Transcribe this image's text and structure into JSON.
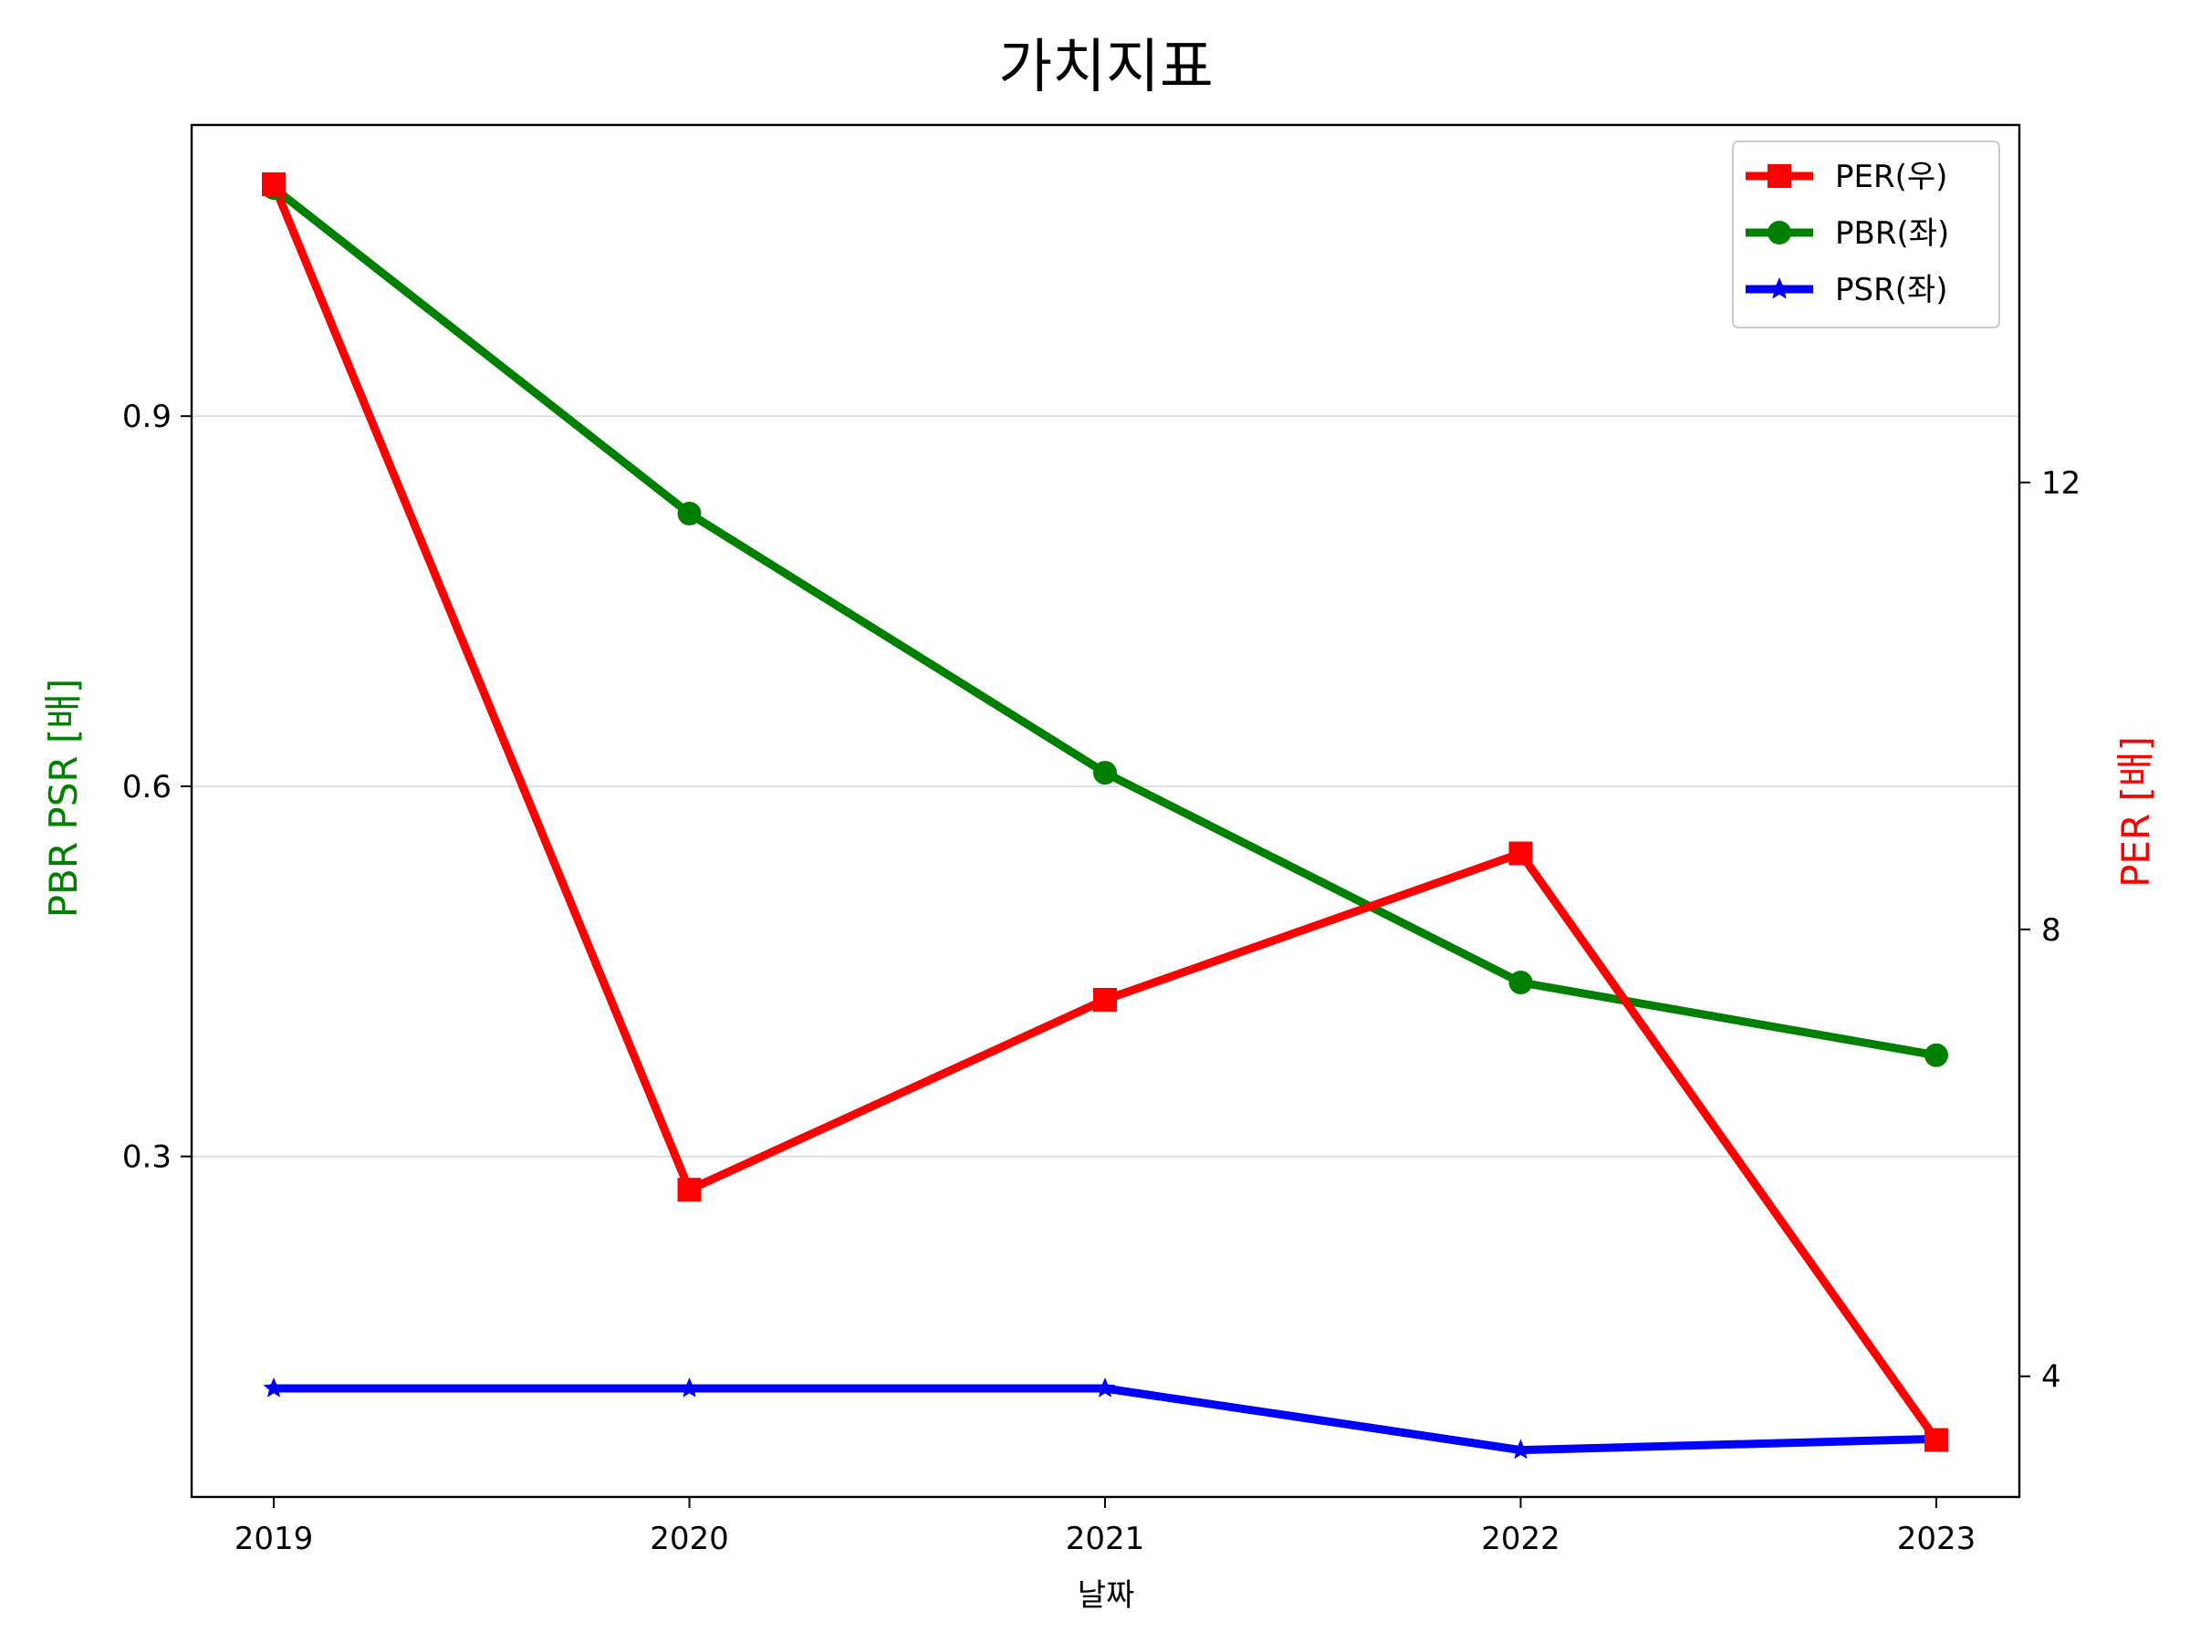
{
  "chart_data": {
    "type": "line",
    "title": "가치지표",
    "xlabel": "날짜",
    "ylabel_left": "PBR PSR [배]",
    "ylabel_right": "PER [배]",
    "categories": [
      "2019",
      "2020",
      "2021",
      "2022",
      "2023"
    ],
    "y_left": {
      "ticks": [
        0.3,
        0.6,
        0.9
      ],
      "tick_labels": [
        "0.3",
        "0.6",
        "0.9"
      ],
      "range": [
        0.024,
        1.136
      ],
      "grid": true
    },
    "y_right": {
      "ticks": [
        4,
        8,
        12
      ],
      "tick_labels": [
        "4",
        "8",
        "12"
      ],
      "range": [
        2.92,
        15.2
      ]
    },
    "series": [
      {
        "name": "PER(우)",
        "axis": "right",
        "color": "#ff0000",
        "marker": "square",
        "values": [
          14.67,
          5.67,
          7.37,
          8.68,
          3.43
        ]
      },
      {
        "name": "PBR(좌)",
        "axis": "left",
        "color": "#008000",
        "marker": "circle",
        "values": [
          1.085,
          0.821,
          0.611,
          0.441,
          0.382
        ]
      },
      {
        "name": "PSR(좌)",
        "axis": "left",
        "color": "#0000ff",
        "marker": "star",
        "values": [
          0.112,
          0.112,
          0.112,
          0.062,
          0.071
        ]
      }
    ],
    "legend": {
      "placement": "top-right"
    },
    "colors": {
      "ylabel_left": "#008000",
      "ylabel_right": "#ff0000"
    }
  }
}
